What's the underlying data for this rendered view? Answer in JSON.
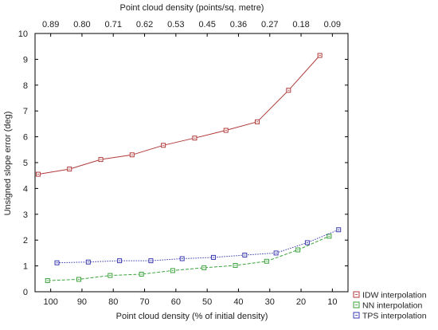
{
  "chart_data": {
    "type": "line",
    "top_axis_label": "Point cloud density (points/sq. metre)",
    "top_tick_labels": [
      "0.89",
      "0.80",
      "0.71",
      "0.62",
      "0.53",
      "0.45",
      "0.36",
      "0.27",
      "0.18",
      "0.09"
    ],
    "xlabel": "Point cloud density (% of initial density)",
    "ylabel": "Unsigned slope error (deg)",
    "x_ticks": [
      100,
      90,
      80,
      70,
      60,
      50,
      40,
      30,
      20,
      10
    ],
    "x_reversed": true,
    "xlim": [
      105,
      5
    ],
    "ylim": [
      0,
      10
    ],
    "y_ticks": [
      0,
      1,
      2,
      3,
      4,
      5,
      6,
      7,
      8,
      9,
      10
    ],
    "grid": false,
    "legend_position": "bottom-right",
    "series": [
      {
        "name": "IDW interpolation",
        "color": "#b03a3a",
        "line_style": "solid",
        "x": [
          104,
          94,
          84,
          74,
          64,
          54,
          44,
          34,
          24,
          14
        ],
        "y": [
          4.55,
          4.75,
          5.12,
          5.3,
          5.67,
          5.95,
          6.25,
          6.58,
          7.8,
          9.15
        ]
      },
      {
        "name": "NN interpolation",
        "color": "#3aa33a",
        "line_style": "dashed",
        "x": [
          101,
          91,
          81,
          71,
          61,
          51,
          41,
          31,
          21,
          11
        ],
        "y": [
          0.43,
          0.48,
          0.63,
          0.68,
          0.82,
          0.93,
          1.02,
          1.18,
          1.62,
          2.15
        ]
      },
      {
        "name": "TPS interpolation",
        "color": "#3a3ab0",
        "line_style": "dotted",
        "x": [
          98,
          88,
          78,
          68,
          58,
          48,
          38,
          28,
          18,
          8
        ],
        "y": [
          1.12,
          1.15,
          1.2,
          1.2,
          1.28,
          1.33,
          1.42,
          1.5,
          1.9,
          2.4
        ]
      }
    ]
  }
}
